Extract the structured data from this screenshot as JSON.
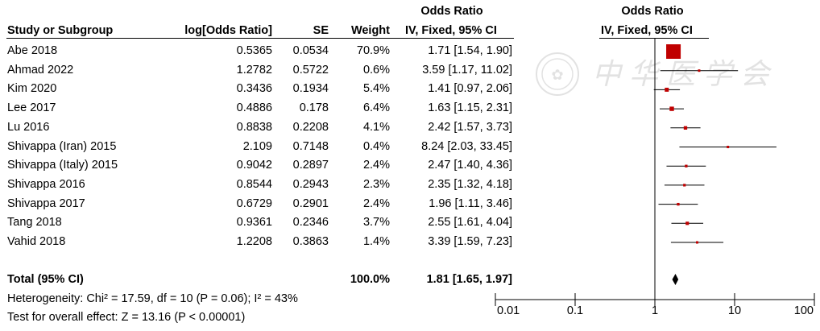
{
  "headers": {
    "or_top": "Odds Ratio",
    "or_top_plot": "Odds Ratio",
    "study": "Study or Subgroup",
    "logor": "log[Odds Ratio]",
    "se": "SE",
    "weight": "Weight",
    "ci_method": "IV, Fixed, 95% CI",
    "ci_method_plot": "IV, Fixed, 95% CI"
  },
  "watermark": "中 华 医 学 会",
  "rows": [
    {
      "study": "Abe 2018",
      "logor": "0.5365",
      "se": "0.0534",
      "weight": "70.9%",
      "ci": "1.71 [1.54, 1.90]",
      "or": 1.71,
      "lo": 1.54,
      "hi": 1.9,
      "w": 70.9
    },
    {
      "study": "Ahmad 2022",
      "logor": "1.2782",
      "se": "0.5722",
      "weight": "0.6%",
      "ci": "3.59 [1.17, 11.02]",
      "or": 3.59,
      "lo": 1.17,
      "hi": 11.02,
      "w": 0.6
    },
    {
      "study": "Kim 2020",
      "logor": "0.3436",
      "se": "0.1934",
      "weight": "5.4%",
      "ci": "1.41 [0.97, 2.06]",
      "or": 1.41,
      "lo": 0.97,
      "hi": 2.06,
      "w": 5.4
    },
    {
      "study": "Lee 2017",
      "logor": "0.4886",
      "se": "0.178",
      "weight": "6.4%",
      "ci": "1.63 [1.15, 2.31]",
      "or": 1.63,
      "lo": 1.15,
      "hi": 2.31,
      "w": 6.4
    },
    {
      "study": "Lu 2016",
      "logor": "0.8838",
      "se": "0.2208",
      "weight": "4.1%",
      "ci": "2.42 [1.57, 3.73]",
      "or": 2.42,
      "lo": 1.57,
      "hi": 3.73,
      "w": 4.1
    },
    {
      "study": "Shivappa (Iran) 2015",
      "logor": "2.109",
      "se": "0.7148",
      "weight": "0.4%",
      "ci": "8.24 [2.03, 33.45]",
      "or": 8.24,
      "lo": 2.03,
      "hi": 33.45,
      "w": 0.4
    },
    {
      "study": "Shivappa (Italy) 2015",
      "logor": "0.9042",
      "se": "0.2897",
      "weight": "2.4%",
      "ci": "2.47 [1.40, 4.36]",
      "or": 2.47,
      "lo": 1.4,
      "hi": 4.36,
      "w": 2.4
    },
    {
      "study": "Shivappa 2016",
      "logor": "0.8544",
      "se": "0.2943",
      "weight": "2.3%",
      "ci": "2.35 [1.32, 4.18]",
      "or": 2.35,
      "lo": 1.32,
      "hi": 4.18,
      "w": 2.3
    },
    {
      "study": "Shivappa 2017",
      "logor": "0.6729",
      "se": "0.2901",
      "weight": "2.4%",
      "ci": "1.96 [1.11, 3.46]",
      "or": 1.96,
      "lo": 1.11,
      "hi": 3.46,
      "w": 2.4
    },
    {
      "study": "Tang 2018",
      "logor": "0.9361",
      "se": "0.2346",
      "weight": "3.7%",
      "ci": "2.55 [1.61, 4.04]",
      "or": 2.55,
      "lo": 1.61,
      "hi": 4.04,
      "w": 3.7
    },
    {
      "study": "Vahid 2018",
      "logor": "1.2208",
      "se": "0.3863",
      "weight": "1.4%",
      "ci": "3.39 [1.59, 7.23]",
      "or": 3.39,
      "lo": 1.59,
      "hi": 7.23,
      "w": 1.4
    }
  ],
  "total": {
    "label": "Total (95% CI)",
    "weight": "100.0%",
    "ci": "1.81 [1.65, 1.97]",
    "or": 1.81,
    "lo": 1.65,
    "hi": 1.97
  },
  "heterogeneity": "Heterogeneity: Chi² = 17.59, df = 10 (P = 0.06); I² = 43%",
  "overall_effect": "Test for overall effect: Z = 13.16 (P < 0.00001)",
  "colors": {
    "marker": "#c00000",
    "text": "#000000",
    "line": "#000000"
  },
  "chart_data": {
    "type": "scatter",
    "title": "",
    "xlabel": "",
    "ylabel": "",
    "x_scale": "log",
    "xlim": [
      0.01,
      100
    ],
    "x_ticks": [
      0.01,
      0.1,
      1,
      10,
      100
    ],
    "x_tick_labels": [
      "0.01",
      "0.1",
      "1",
      "10",
      "100"
    ],
    "reference_line": 1,
    "categories": [
      "Abe 2018",
      "Ahmad 2022",
      "Kim 2020",
      "Lee 2017",
      "Lu 2016",
      "Shivappa (Iran) 2015",
      "Shivappa (Italy) 2015",
      "Shivappa 2016",
      "Shivappa 2017",
      "Tang 2018",
      "Vahid 2018"
    ],
    "series": [
      {
        "values": [
          1.71,
          3.59,
          1.41,
          1.63,
          2.42,
          8.24,
          2.47,
          2.35,
          1.96,
          2.55,
          3.39
        ],
        "ci_low": [
          1.54,
          1.17,
          0.97,
          1.15,
          1.57,
          2.03,
          1.4,
          1.32,
          1.11,
          1.61,
          1.59
        ],
        "ci_high": [
          1.9,
          11.02,
          2.06,
          2.31,
          3.73,
          33.45,
          4.36,
          4.18,
          3.46,
          4.04,
          7.23
        ],
        "weights": [
          70.9,
          0.6,
          5.4,
          6.4,
          4.1,
          0.4,
          2.4,
          2.3,
          2.4,
          3.7,
          1.4
        ]
      }
    ],
    "pooled": {
      "value": 1.81,
      "ci_low": 1.65,
      "ci_high": 1.97
    },
    "grid": false,
    "legend": "none"
  }
}
